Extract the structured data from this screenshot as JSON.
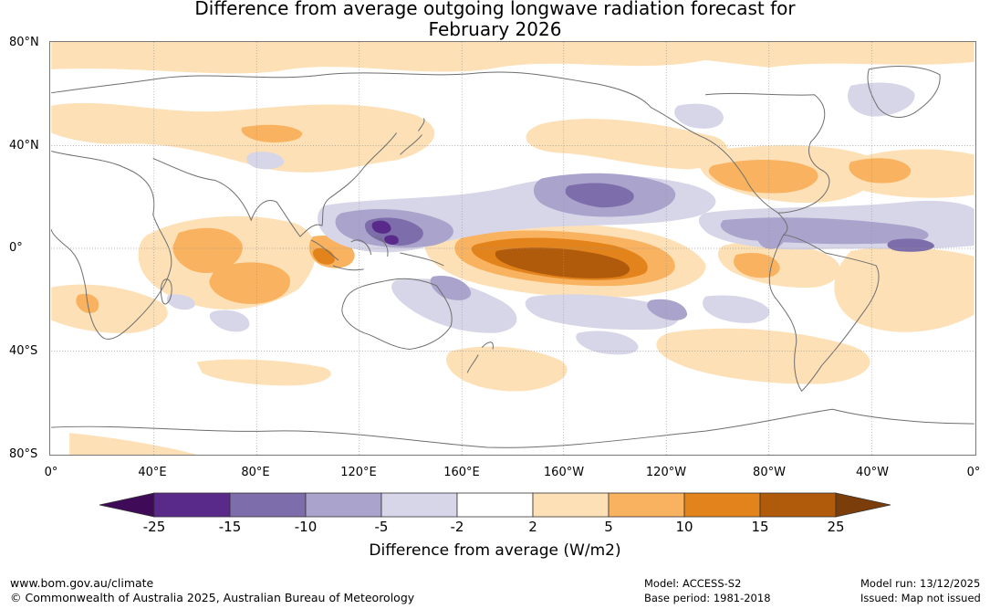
{
  "title_line1": "Difference from average outgoing longwave radiation forecast for",
  "title_line2": "February 2026",
  "lat_labels": [
    "80°N",
    "40°N",
    "0°",
    "40°S",
    "80°S"
  ],
  "lon_labels": [
    "0°",
    "40°E",
    "80°E",
    "120°E",
    "160°E",
    "160°W",
    "120°W",
    "80°W",
    "40°W",
    "0°"
  ],
  "legend": {
    "title": "Difference from average (W/m2)",
    "ticks": [
      "-25",
      "-15",
      "-10",
      "-5",
      "-2",
      "2",
      "5",
      "10",
      "15",
      "25"
    ],
    "colors": [
      "#3f0a57",
      "#5a2a8a",
      "#7d6eab",
      "#aaa3cc",
      "#d7d5e8",
      "#ffffff",
      "#fde0b5",
      "#f9b25f",
      "#e2831b",
      "#b05a0c",
      "#7b3e0a"
    ]
  },
  "footer": {
    "url": "www.bom.gov.au/climate",
    "copyright": "© Commonwealth of Australia 2025, Australian Bureau of Meteorology",
    "model": "Model: ACCESS-S2",
    "base_period": "Base period: 1981-2018",
    "model_run": "Model run: 13/12/2025",
    "issued": "Issued: Map not issued"
  }
}
